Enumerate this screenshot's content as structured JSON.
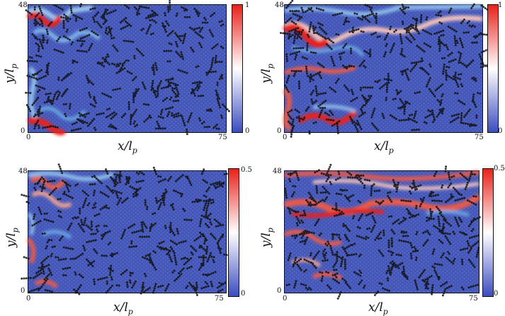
{
  "panels": [
    {
      "id": "top-left",
      "x_min": "0",
      "x_max": "75",
      "y_min": "0",
      "y_max": "48",
      "x_label": "x/l",
      "x_sub": "p",
      "y_label": "y/l",
      "y_sub": "p",
      "cbar_min": "0",
      "cbar_max": "1"
    },
    {
      "id": "top-right",
      "x_min": "0",
      "x_max": "75",
      "y_min": "0",
      "y_max": "48",
      "x_label": "x/l",
      "x_sub": "p",
      "y_label": "y/l",
      "y_sub": "p",
      "cbar_min": "0",
      "cbar_max": "1"
    },
    {
      "id": "bottom-left",
      "x_min": "0",
      "x_max": "75",
      "y_min": "0",
      "y_max": "48",
      "x_label": "x/l",
      "x_sub": "p",
      "y_label": "y/l",
      "y_sub": "p",
      "cbar_min": "0",
      "cbar_max": "0.5"
    },
    {
      "id": "bottom-right",
      "x_min": "0",
      "x_max": "75",
      "y_min": "0",
      "y_max": "48",
      "x_label": "x/l",
      "x_sub": "p",
      "y_label": "y/l",
      "y_sub": "p",
      "cbar_min": "0",
      "cbar_max": "0.5"
    }
  ],
  "colors": {
    "low": "#3b4cc0",
    "mid": "#ffffff",
    "high": "#e8221b",
    "particle": "#111111",
    "field": "#4356b8"
  }
}
